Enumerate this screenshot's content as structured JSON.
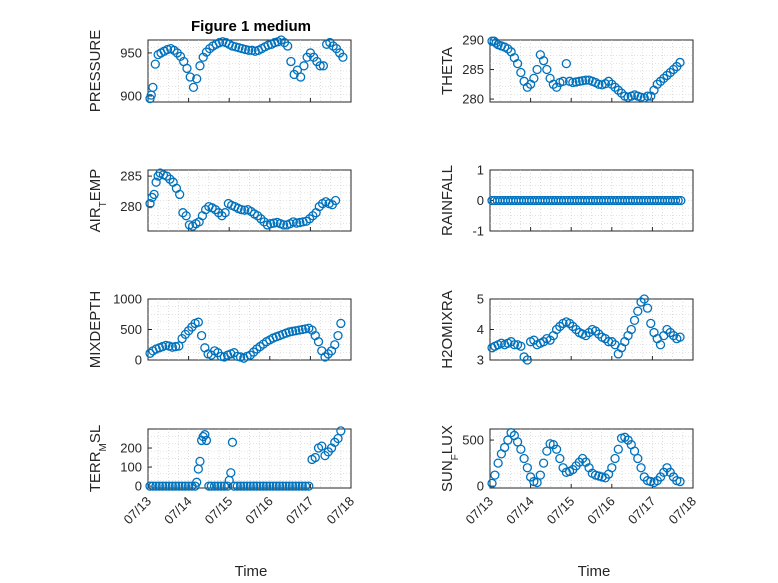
{
  "figure": {
    "title": "Figure 1 medium",
    "marker_color": "#0072BD",
    "x_tick_labels": [
      "07/13",
      "07/14",
      "07/15",
      "07/16",
      "07/17",
      "07/18"
    ],
    "x_label": "Time"
  },
  "chart_data": [
    {
      "type": "scatter",
      "panel": "top-left",
      "ylabel": "PRESSURE",
      "ylabel_sub": null,
      "xlim": [
        0,
        5
      ],
      "ylim": [
        893,
        965
      ],
      "yticks": [
        900,
        950
      ],
      "ytick_labels": [
        "900",
        "950"
      ],
      "grid": true,
      "x": [
        0.05,
        0.08,
        0.12,
        0.18,
        0.25,
        0.32,
        0.4,
        0.48,
        0.56,
        0.64,
        0.72,
        0.8,
        0.88,
        0.96,
        1.04,
        1.12,
        1.2,
        1.28,
        1.36,
        1.44,
        1.52,
        1.6,
        1.68,
        1.76,
        1.84,
        1.92,
        2.0,
        2.08,
        2.16,
        2.24,
        2.32,
        2.4,
        2.48,
        2.56,
        2.64,
        2.72,
        2.8,
        2.88,
        2.96,
        3.04,
        3.12,
        3.2,
        3.28,
        3.36,
        3.44,
        3.52,
        3.6,
        3.68,
        3.76,
        3.84,
        3.92,
        4.0,
        4.08,
        4.16,
        4.24,
        4.32,
        4.4,
        4.48,
        4.56,
        4.64,
        4.72,
        4.8
      ],
      "y": [
        897,
        901,
        910,
        937,
        948,
        950,
        952,
        954,
        955,
        953,
        950,
        946,
        940,
        932,
        922,
        910,
        920,
        935,
        945,
        951,
        955,
        958,
        960,
        962,
        963,
        962,
        960,
        958,
        957,
        956,
        955,
        954,
        953,
        953,
        952,
        953,
        955,
        957,
        959,
        960,
        962,
        963,
        965,
        962,
        958,
        940,
        925,
        930,
        922,
        935,
        945,
        950,
        945,
        940,
        935,
        935,
        960,
        962,
        958,
        955,
        950,
        945
      ],
      "note": "values estimated"
    },
    {
      "type": "scatter",
      "panel": "top-right",
      "ylabel": "THETA",
      "ylabel_sub": null,
      "xlim": [
        0,
        5
      ],
      "ylim": [
        279.5,
        290
      ],
      "yticks": [
        280,
        285,
        290
      ],
      "ytick_labels": [
        "280",
        "285",
        "290"
      ],
      "grid": true,
      "x": [
        0.05,
        0.1,
        0.15,
        0.2,
        0.28,
        0.36,
        0.44,
        0.52,
        0.6,
        0.68,
        0.76,
        0.84,
        0.92,
        1.0,
        1.08,
        1.16,
        1.24,
        1.32,
        1.4,
        1.48,
        1.56,
        1.64,
        1.72,
        1.8,
        1.88,
        1.96,
        2.04,
        2.12,
        2.2,
        2.28,
        2.36,
        2.44,
        2.52,
        2.6,
        2.68,
        2.76,
        2.84,
        2.92,
        3.0,
        3.08,
        3.16,
        3.24,
        3.32,
        3.4,
        3.48,
        3.56,
        3.64,
        3.72,
        3.8,
        3.88,
        3.96,
        4.04,
        4.12,
        4.2,
        4.28,
        4.36,
        4.44,
        4.52,
        4.6,
        4.68
      ],
      "y": [
        289.8,
        289.8,
        289.5,
        289.2,
        289.0,
        288.8,
        288.5,
        288.0,
        287.0,
        286.0,
        284.5,
        283.0,
        282.0,
        282.5,
        283.5,
        285.0,
        287.5,
        286.5,
        285.0,
        283.5,
        282.5,
        282.0,
        282.8,
        283.0,
        286.0,
        283.0,
        282.8,
        282.9,
        283.0,
        283.1,
        283.2,
        283.2,
        283.0,
        282.8,
        282.5,
        282.4,
        282.6,
        283.0,
        282.5,
        282.0,
        281.5,
        281.0,
        280.5,
        280.3,
        280.5,
        280.7,
        280.5,
        280.3,
        280.2,
        280.5,
        280.5,
        281.5,
        282.5,
        283.0,
        283.5,
        284.0,
        284.5,
        285.0,
        285.5,
        286.2
      ],
      "note": "values estimated"
    },
    {
      "type": "scatter",
      "panel": "mid-upper-left",
      "ylabel": "AIR",
      "ylabel_sub": "T",
      "ylabel_tail": "EMP",
      "xlim": [
        0,
        5
      ],
      "ylim": [
        276,
        286
      ],
      "yticks": [
        280,
        285
      ],
      "ytick_labels": [
        "280",
        "285"
      ],
      "grid": true,
      "x": [
        0.05,
        0.1,
        0.15,
        0.2,
        0.25,
        0.3,
        0.38,
        0.46,
        0.54,
        0.62,
        0.7,
        0.78,
        0.86,
        0.94,
        1.02,
        1.1,
        1.18,
        1.26,
        1.34,
        1.42,
        1.5,
        1.58,
        1.66,
        1.74,
        1.82,
        1.9,
        1.98,
        2.06,
        2.14,
        2.22,
        2.3,
        2.38,
        2.46,
        2.54,
        2.62,
        2.7,
        2.78,
        2.86,
        2.94,
        3.02,
        3.1,
        3.18,
        3.26,
        3.34,
        3.42,
        3.5,
        3.58,
        3.66,
        3.74,
        3.82,
        3.9,
        3.98,
        4.06,
        4.14,
        4.22,
        4.3,
        4.38,
        4.46,
        4.54,
        4.62
      ],
      "y": [
        280.5,
        281.5,
        282.0,
        284.0,
        285.0,
        285.5,
        285.2,
        285.0,
        284.5,
        284.0,
        283.0,
        282.0,
        279.0,
        278.5,
        277.0,
        276.8,
        277.2,
        277.5,
        278.5,
        279.5,
        280.0,
        279.8,
        279.5,
        279.0,
        278.5,
        279.0,
        280.5,
        280.2,
        280.0,
        279.7,
        279.5,
        279.4,
        279.5,
        279.2,
        278.8,
        278.5,
        278.0,
        277.5,
        277.0,
        277.2,
        277.3,
        277.4,
        277.2,
        277.0,
        277.0,
        277.2,
        277.5,
        277.3,
        277.4,
        277.5,
        277.6,
        278.0,
        278.5,
        279.0,
        280.0,
        280.5,
        280.8,
        280.5,
        280.3,
        281.0
      ],
      "note": "values estimated"
    },
    {
      "type": "scatter",
      "panel": "mid-upper-right",
      "ylabel": "RAINFALL",
      "ylabel_sub": null,
      "xlim": [
        0,
        5
      ],
      "ylim": [
        -1,
        1
      ],
      "yticks": [
        -1,
        0,
        1
      ],
      "ytick_labels": [
        "-1",
        "0",
        "1"
      ],
      "grid": true,
      "x_range": [
        0.05,
        4.7
      ],
      "n_points": 72,
      "y_constant": 0
    },
    {
      "type": "scatter",
      "panel": "mid-lower-left",
      "ylabel": "MIXDEPTH",
      "ylabel_sub": null,
      "xlim": [
        0,
        5
      ],
      "ylim": [
        0,
        1000
      ],
      "yticks": [
        0,
        500,
        1000
      ],
      "ytick_labels": [
        "0",
        "500",
        "1000"
      ],
      "grid": true,
      "x": [
        0.05,
        0.12,
        0.2,
        0.28,
        0.36,
        0.44,
        0.52,
        0.6,
        0.68,
        0.76,
        0.84,
        0.92,
        1.0,
        1.08,
        1.16,
        1.24,
        1.32,
        1.4,
        1.48,
        1.56,
        1.64,
        1.72,
        1.8,
        1.88,
        1.96,
        2.04,
        2.12,
        2.2,
        2.28,
        2.36,
        2.44,
        2.52,
        2.6,
        2.68,
        2.76,
        2.84,
        2.92,
        3.0,
        3.08,
        3.16,
        3.24,
        3.32,
        3.4,
        3.48,
        3.56,
        3.64,
        3.72,
        3.8,
        3.88,
        3.96,
        4.04,
        4.12,
        4.2,
        4.28,
        4.36,
        4.44,
        4.52,
        4.6,
        4.68,
        4.75
      ],
      "y": [
        110,
        150,
        180,
        200,
        220,
        240,
        230,
        210,
        220,
        230,
        350,
        420,
        480,
        540,
        600,
        620,
        400,
        200,
        100,
        80,
        150,
        120,
        60,
        50,
        80,
        100,
        120,
        60,
        50,
        30,
        60,
        80,
        130,
        180,
        220,
        260,
        300,
        330,
        360,
        380,
        400,
        420,
        440,
        460,
        470,
        480,
        490,
        500,
        510,
        520,
        490,
        400,
        300,
        150,
        50,
        100,
        150,
        250,
        400,
        600
      ],
      "note": "values estimated"
    },
    {
      "type": "scatter",
      "panel": "mid-lower-right",
      "ylabel": "H2OMIXRA",
      "ylabel_sub": null,
      "xlim": [
        0,
        5
      ],
      "ylim": [
        3,
        5
      ],
      "yticks": [
        3,
        4,
        5
      ],
      "ytick_labels": [
        "3",
        "4",
        "5"
      ],
      "grid": true,
      "x": [
        0.05,
        0.12,
        0.2,
        0.28,
        0.36,
        0.44,
        0.52,
        0.6,
        0.68,
        0.76,
        0.84,
        0.92,
        1.0,
        1.08,
        1.16,
        1.24,
        1.32,
        1.4,
        1.48,
        1.56,
        1.64,
        1.72,
        1.8,
        1.88,
        1.96,
        2.04,
        2.12,
        2.2,
        2.28,
        2.36,
        2.44,
        2.52,
        2.6,
        2.68,
        2.76,
        2.84,
        2.92,
        3.0,
        3.08,
        3.16,
        3.24,
        3.32,
        3.4,
        3.48,
        3.56,
        3.64,
        3.72,
        3.8,
        3.88,
        3.96,
        4.04,
        4.12,
        4.2,
        4.28,
        4.36,
        4.44,
        4.52,
        4.6,
        4.68
      ],
      "y": [
        3.4,
        3.45,
        3.5,
        3.55,
        3.5,
        3.55,
        3.6,
        3.5,
        3.5,
        3.45,
        3.1,
        3.0,
        3.6,
        3.65,
        3.5,
        3.55,
        3.6,
        3.7,
        3.65,
        3.8,
        4.0,
        4.1,
        4.2,
        4.25,
        4.2,
        4.1,
        4.0,
        3.9,
        3.85,
        3.8,
        3.9,
        4.0,
        3.95,
        3.85,
        3.75,
        3.7,
        3.6,
        3.6,
        3.5,
        3.2,
        3.4,
        3.6,
        3.8,
        4.0,
        4.3,
        4.6,
        4.9,
        5.0,
        4.7,
        4.2,
        3.9,
        3.7,
        3.5,
        3.8,
        4.0,
        3.9,
        3.8,
        3.7,
        3.75
      ],
      "note": "values estimated"
    },
    {
      "type": "scatter",
      "panel": "bottom-left",
      "ylabel": "TERR",
      "ylabel_sub": "M",
      "ylabel_tail": "SL",
      "xlim": [
        0,
        5
      ],
      "ylim": [
        -10,
        300
      ],
      "yticks": [
        0,
        100,
        200
      ],
      "ytick_labels": [
        "0",
        "100",
        "200"
      ],
      "grid": true,
      "x": [
        0.05,
        0.12,
        0.2,
        0.28,
        0.36,
        0.44,
        0.52,
        0.6,
        0.68,
        0.76,
        0.84,
        0.92,
        1.0,
        1.08,
        1.16,
        1.2,
        1.24,
        1.28,
        1.32,
        1.36,
        1.4,
        1.44,
        1.5,
        1.56,
        1.64,
        1.72,
        1.8,
        1.88,
        1.96,
        2.0,
        2.04,
        2.08,
        2.12,
        2.2,
        2.28,
        2.36,
        2.44,
        2.52,
        2.6,
        2.68,
        2.76,
        2.84,
        2.92,
        3.0,
        3.08,
        3.16,
        3.24,
        3.32,
        3.4,
        3.48,
        3.56,
        3.64,
        3.72,
        3.8,
        3.88,
        3.96,
        4.04,
        4.12,
        4.2,
        4.28,
        4.36,
        4.44,
        4.52,
        4.6,
        4.68,
        4.75
      ],
      "y": [
        0,
        0,
        0,
        0,
        0,
        0,
        0,
        0,
        0,
        0,
        0,
        0,
        0,
        0,
        0,
        20,
        90,
        130,
        240,
        260,
        270,
        240,
        0,
        0,
        0,
        0,
        0,
        0,
        0,
        30,
        70,
        230,
        0,
        0,
        0,
        0,
        0,
        0,
        0,
        0,
        0,
        0,
        0,
        0,
        0,
        0,
        0,
        0,
        0,
        0,
        0,
        0,
        0,
        0,
        0,
        0,
        140,
        150,
        200,
        210,
        160,
        180,
        200,
        230,
        250,
        290
      ],
      "note": "values estimated"
    },
    {
      "type": "scatter",
      "panel": "bottom-right",
      "ylabel": "SUN",
      "ylabel_sub": "F",
      "ylabel_tail": "LUX",
      "xlim": [
        0,
        5
      ],
      "ylim": [
        -20,
        620
      ],
      "yticks": [
        0,
        500
      ],
      "ytick_labels": [
        "0",
        "500"
      ],
      "grid": true,
      "x": [
        0.05,
        0.12,
        0.2,
        0.28,
        0.36,
        0.44,
        0.52,
        0.6,
        0.68,
        0.76,
        0.84,
        0.92,
        1.0,
        1.08,
        1.16,
        1.24,
        1.32,
        1.4,
        1.48,
        1.56,
        1.64,
        1.72,
        1.8,
        1.88,
        1.96,
        2.04,
        2.12,
        2.2,
        2.28,
        2.36,
        2.44,
        2.52,
        2.6,
        2.68,
        2.76,
        2.84,
        2.92,
        3.0,
        3.08,
        3.16,
        3.24,
        3.32,
        3.4,
        3.48,
        3.56,
        3.64,
        3.72,
        3.8,
        3.88,
        3.96,
        4.04,
        4.12,
        4.2,
        4.28,
        4.36,
        4.44,
        4.52,
        4.6,
        4.68
      ],
      "y": [
        30,
        120,
        250,
        350,
        420,
        500,
        580,
        550,
        480,
        400,
        300,
        200,
        100,
        50,
        40,
        120,
        250,
        380,
        460,
        450,
        400,
        300,
        200,
        150,
        160,
        180,
        220,
        260,
        300,
        260,
        200,
        140,
        120,
        110,
        100,
        90,
        130,
        200,
        300,
        400,
        520,
        530,
        500,
        450,
        380,
        300,
        200,
        100,
        60,
        50,
        40,
        60,
        100,
        150,
        200,
        150,
        100,
        60,
        50
      ],
      "note": "values estimated"
    }
  ]
}
